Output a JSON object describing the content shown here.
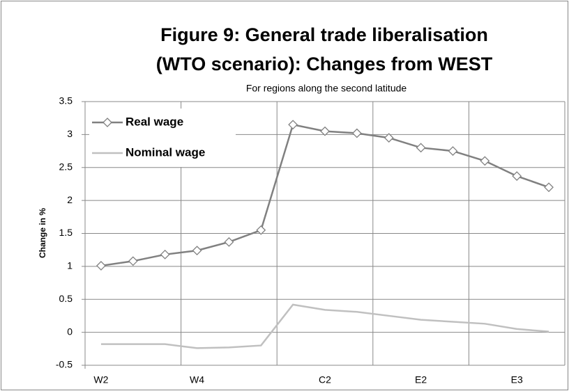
{
  "chart_data": {
    "type": "line",
    "title": [
      "Figure 9: General trade liberalisation",
      "(WTO scenario): Changes from WEST"
    ],
    "subtitle": "For regions along the second latitude",
    "y_label": "Change in %",
    "categories": [
      "W2",
      null,
      null,
      "W4",
      null,
      null,
      null,
      "C2",
      null,
      null,
      "E2",
      null,
      null,
      "E3",
      null
    ],
    "series": [
      {
        "name": "Real wage",
        "color": "#808080",
        "marker": "diamond",
        "values": [
          1.01,
          1.08,
          1.18,
          1.24,
          1.37,
          1.55,
          3.15,
          3.05,
          3.02,
          2.95,
          2.8,
          2.75,
          2.6,
          2.37,
          2.2
        ]
      },
      {
        "name": "Nominal wage",
        "color": "#c0c0c0",
        "marker": "none",
        "values": [
          -0.18,
          -0.18,
          -0.18,
          -0.24,
          -0.23,
          -0.2,
          0.42,
          0.34,
          0.31,
          0.25,
          0.19,
          0.16,
          0.13,
          0.05,
          0.01
        ]
      }
    ],
    "ylim": [
      -0.5,
      3.5
    ],
    "yticks": [
      -0.5,
      0,
      0.5,
      1,
      1.5,
      2,
      2.5,
      3,
      3.5
    ],
    "grid": true,
    "legend": "upper-left"
  }
}
